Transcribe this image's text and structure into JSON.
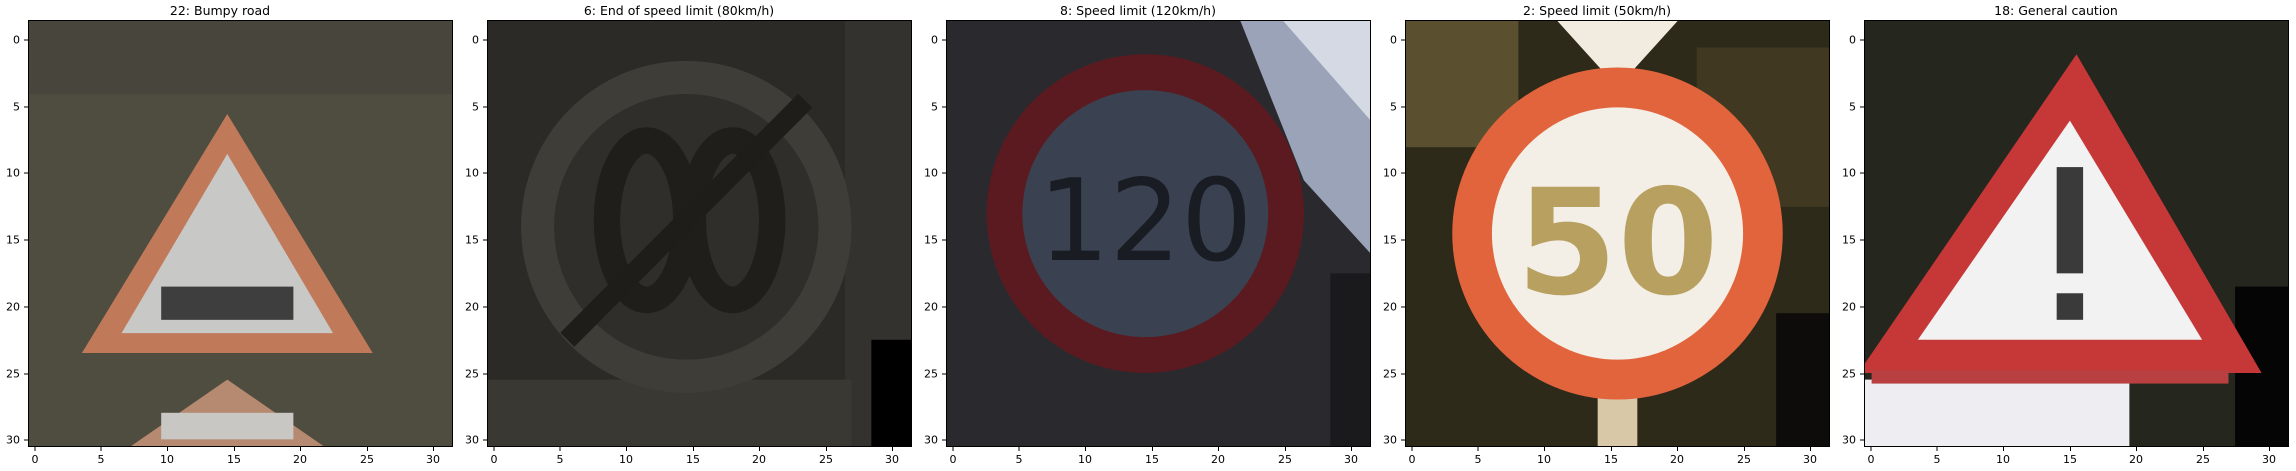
{
  "panels": [
    {
      "title": "22: Bumpy road",
      "scene": "bumpy",
      "xticks": [
        "0",
        "5",
        "10",
        "15",
        "20",
        "25",
        "30"
      ],
      "yticks": [
        "0",
        "5",
        "10",
        "15",
        "20",
        "25",
        "30"
      ]
    },
    {
      "title": "6: End of speed limit (80km/h)",
      "scene": "end80",
      "xticks": [
        "0",
        "5",
        "10",
        "15",
        "20",
        "25",
        "30"
      ],
      "yticks": [
        "0",
        "5",
        "10",
        "15",
        "20",
        "25",
        "30"
      ]
    },
    {
      "title": "8: Speed limit (120km/h)",
      "scene": "limit120",
      "xticks": [
        "0",
        "5",
        "10",
        "15",
        "20",
        "25",
        "30"
      ],
      "yticks": [
        "0",
        "5",
        "10",
        "15",
        "20",
        "25",
        "30"
      ]
    },
    {
      "title": "2: Speed limit (50km/h)",
      "scene": "limit50",
      "xticks": [
        "0",
        "5",
        "10",
        "15",
        "20",
        "25",
        "30"
      ],
      "yticks": [
        "0",
        "5",
        "10",
        "15",
        "20",
        "25",
        "30"
      ]
    },
    {
      "title": "18: General caution",
      "scene": "caution",
      "xticks": [
        "0",
        "5",
        "10",
        "15",
        "20",
        "25",
        "30"
      ],
      "yticks": [
        "0",
        "5",
        "10",
        "15",
        "20",
        "25",
        "30"
      ]
    }
  ],
  "sign_text": {
    "limit120": "120",
    "limit50": "50"
  }
}
